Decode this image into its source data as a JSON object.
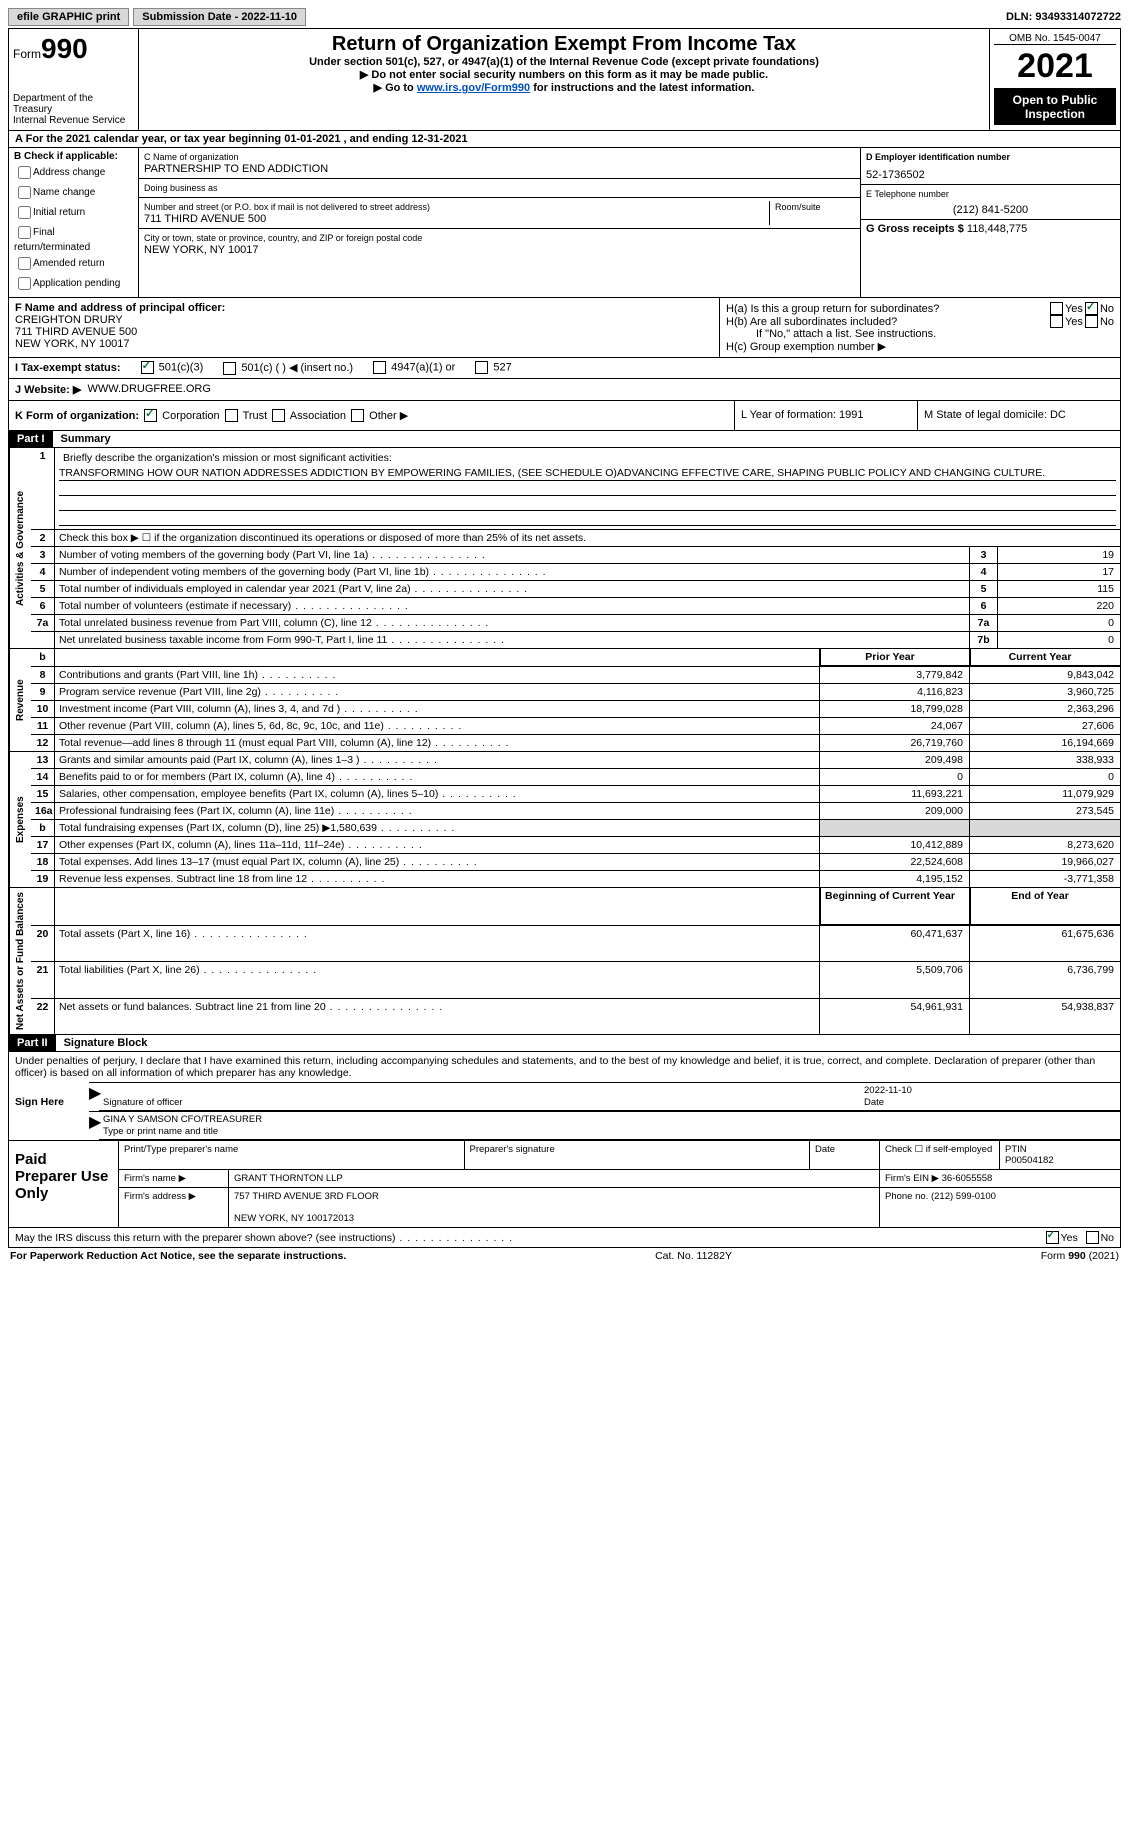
{
  "topbar": {
    "efile": "efile GRAPHIC print",
    "submission_label": "Submission Date - 2022-11-10",
    "dln": "DLN: 93493314072722"
  },
  "header": {
    "form_prefix": "Form",
    "form_number": "990",
    "dept": "Department of the Treasury",
    "irs": "Internal Revenue Service",
    "title": "Return of Organization Exempt From Income Tax",
    "subtitle": "Under section 501(c), 527, or 4947(a)(1) of the Internal Revenue Code (except private foundations)",
    "arrow1": "▶ Do not enter social security numbers on this form as it may be made public.",
    "arrow2_pre": "▶ Go to ",
    "arrow2_link": "www.irs.gov/Form990",
    "arrow2_post": " for instructions and the latest information.",
    "omb": "OMB No. 1545-0047",
    "year": "2021",
    "open": "Open to Public Inspection"
  },
  "lineA": "For the 2021 calendar year, or tax year beginning 01-01-2021    , and ending 12-31-2021",
  "blockB": {
    "label": "B Check if applicable:",
    "opts": [
      "Address change",
      "Name change",
      "Initial return",
      "Final return/terminated",
      "Amended return",
      "Application pending"
    ]
  },
  "blockC": {
    "label": "C Name of organization",
    "name": "PARTNERSHIP TO END ADDICTION",
    "dba_label": "Doing business as",
    "addr_label": "Number and street (or P.O. box if mail is not delivered to street address)",
    "room_label": "Room/suite",
    "addr": "711 THIRD AVENUE 500",
    "city_label": "City or town, state or province, country, and ZIP or foreign postal code",
    "city": "NEW YORK, NY  10017"
  },
  "blockD": {
    "label": "D Employer identification number",
    "val": "52-1736502"
  },
  "blockE": {
    "label": "E Telephone number",
    "val": "(212) 841-5200"
  },
  "blockG": {
    "label": "G Gross receipts $",
    "val": "118,448,775"
  },
  "blockF": {
    "label": "F  Name and address of principal officer:",
    "name": "CREIGHTON DRURY",
    "addr": "711 THIRD AVENUE 500",
    "city": "NEW YORK, NY  10017"
  },
  "blockH": {
    "a": "H(a)  Is this a group return for subordinates?",
    "b": "H(b)  Are all subordinates included?",
    "b_note": "If \"No,\" attach a list. See instructions.",
    "c": "H(c)  Group exemption number ▶",
    "yes": "Yes",
    "no": "No"
  },
  "statusI": {
    "label": "I   Tax-exempt status:",
    "o1": "501(c)(3)",
    "o2": "501(c) (   ) ◀ (insert no.)",
    "o3": "4947(a)(1) or",
    "o4": "527"
  },
  "webJ": {
    "label": "J   Website: ▶",
    "val": "WWW.DRUGFREE.ORG"
  },
  "rowK": {
    "label": "K Form of organization:",
    "o1": "Corporation",
    "o2": "Trust",
    "o3": "Association",
    "o4": "Other ▶",
    "L": "L Year of formation: 1991",
    "M": "M State of legal domicile: DC"
  },
  "part1": {
    "hdr": "Part I",
    "title": "Summary",
    "q1": "Briefly describe the organization's mission or most significant activities:",
    "mission": "TRANSFORMING HOW OUR NATION ADDRESSES ADDICTION BY EMPOWERING FAMILIES, (SEE SCHEDULE O)ADVANCING EFFECTIVE CARE, SHAPING PUBLIC POLICY AND CHANGING CULTURE.",
    "q2": "Check this box ▶ ☐  if the organization discontinued its operations or disposed of more than 25% of its net assets.",
    "vlab1": "Activities & Governance",
    "vlab2": "Revenue",
    "vlab3": "Expenses",
    "vlab4": "Net Assets or Fund Balances",
    "prior": "Prior Year",
    "current": "Current Year",
    "beg": "Beginning of Current Year",
    "end": "End of Year"
  },
  "rows_gov": [
    {
      "n": "3",
      "d": "Number of voting members of the governing body (Part VI, line 1a)",
      "box": "3",
      "v": "19"
    },
    {
      "n": "4",
      "d": "Number of independent voting members of the governing body (Part VI, line 1b)",
      "box": "4",
      "v": "17"
    },
    {
      "n": "5",
      "d": "Total number of individuals employed in calendar year 2021 (Part V, line 2a)",
      "box": "5",
      "v": "115"
    },
    {
      "n": "6",
      "d": "Total number of volunteers (estimate if necessary)",
      "box": "6",
      "v": "220"
    },
    {
      "n": "7a",
      "d": "Total unrelated business revenue from Part VIII, column (C), line 12",
      "box": "7a",
      "v": "0"
    },
    {
      "n": "",
      "d": "Net unrelated business taxable income from Form 990-T, Part I, line 11",
      "box": "7b",
      "v": "0"
    }
  ],
  "rows_rev": [
    {
      "n": "8",
      "d": "Contributions and grants (Part VIII, line 1h)",
      "p": "3,779,842",
      "c": "9,843,042"
    },
    {
      "n": "9",
      "d": "Program service revenue (Part VIII, line 2g)",
      "p": "4,116,823",
      "c": "3,960,725"
    },
    {
      "n": "10",
      "d": "Investment income (Part VIII, column (A), lines 3, 4, and 7d )",
      "p": "18,799,028",
      "c": "2,363,296"
    },
    {
      "n": "11",
      "d": "Other revenue (Part VIII, column (A), lines 5, 6d, 8c, 9c, 10c, and 11e)",
      "p": "24,067",
      "c": "27,606"
    },
    {
      "n": "12",
      "d": "Total revenue—add lines 8 through 11 (must equal Part VIII, column (A), line 12)",
      "p": "26,719,760",
      "c": "16,194,669"
    }
  ],
  "rows_exp": [
    {
      "n": "13",
      "d": "Grants and similar amounts paid (Part IX, column (A), lines 1–3 )",
      "p": "209,498",
      "c": "338,933"
    },
    {
      "n": "14",
      "d": "Benefits paid to or for members (Part IX, column (A), line 4)",
      "p": "0",
      "c": "0"
    },
    {
      "n": "15",
      "d": "Salaries, other compensation, employee benefits (Part IX, column (A), lines 5–10)",
      "p": "11,693,221",
      "c": "11,079,929"
    },
    {
      "n": "16a",
      "d": "Professional fundraising fees (Part IX, column (A), line 11e)",
      "p": "209,000",
      "c": "273,545"
    },
    {
      "n": "b",
      "d": "Total fundraising expenses (Part IX, column (D), line 25) ▶1,580,639",
      "p": "shade",
      "c": "shade"
    },
    {
      "n": "17",
      "d": "Other expenses (Part IX, column (A), lines 11a–11d, 11f–24e)",
      "p": "10,412,889",
      "c": "8,273,620"
    },
    {
      "n": "18",
      "d": "Total expenses. Add lines 13–17 (must equal Part IX, column (A), line 25)",
      "p": "22,524,608",
      "c": "19,966,027"
    },
    {
      "n": "19",
      "d": "Revenue less expenses. Subtract line 18 from line 12",
      "p": "4,195,152",
      "c": "-3,771,358"
    }
  ],
  "rows_net": [
    {
      "n": "20",
      "d": "Total assets (Part X, line 16)",
      "p": "60,471,637",
      "c": "61,675,636"
    },
    {
      "n": "21",
      "d": "Total liabilities (Part X, line 26)",
      "p": "5,509,706",
      "c": "6,736,799"
    },
    {
      "n": "22",
      "d": "Net assets or fund balances. Subtract line 21 from line 20",
      "p": "54,961,931",
      "c": "54,938,837"
    }
  ],
  "part2": {
    "hdr": "Part II",
    "title": "Signature Block",
    "decl": "Under penalties of perjury, I declare that I have examined this return, including accompanying schedules and statements, and to the best of my knowledge and belief, it is true, correct, and complete. Declaration of preparer (other than officer) is based on all information of which preparer has any knowledge.",
    "sign_here": "Sign Here",
    "sig_officer": "Signature of officer",
    "date_label": "Date",
    "date": "2022-11-10",
    "name": "GINA Y SAMSON  CFO/TREASURER",
    "name_label": "Type or print name and title"
  },
  "paid": {
    "label": "Paid Preparer Use Only",
    "r1": {
      "a": "Print/Type preparer's name",
      "b": "Preparer's signature",
      "c": "Date",
      "d_label": "Check ☐  if self-employed",
      "e_label": "PTIN",
      "e": "P00504182"
    },
    "r2": {
      "a": "Firm's name    ▶",
      "b": "GRANT THORNTON LLP",
      "c": "Firm's EIN ▶",
      "d": "36-6055558"
    },
    "r3": {
      "a": "Firm's address ▶",
      "b": "757 THIRD AVENUE 3RD FLOOR",
      "b2": "NEW YORK, NY  100172013",
      "c": "Phone no.",
      "d": "(212) 599-0100"
    }
  },
  "footer": {
    "q": "May the IRS discuss this return with the preparer shown above? (see instructions)",
    "yes": "Yes",
    "no": "No",
    "pra": "For Paperwork Reduction Act Notice, see the separate instructions.",
    "cat": "Cat. No. 11282Y",
    "form": "Form 990 (2021)"
  }
}
